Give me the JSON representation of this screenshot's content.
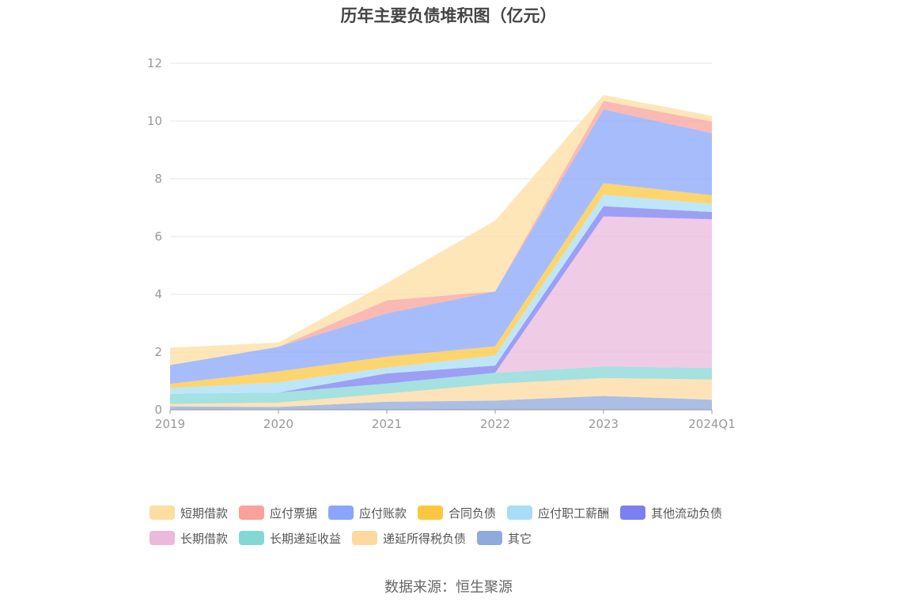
{
  "title": "历年主要负债堆积图（亿元）",
  "source": "数据来源：恒生聚源",
  "chart_data": {
    "type": "area",
    "stacked": true,
    "categories": [
      "2019",
      "2020",
      "2021",
      "2022",
      "2023",
      "2024Q1"
    ],
    "ylim": [
      0,
      12
    ],
    "yticks": [
      0,
      2,
      4,
      6,
      8,
      10,
      12
    ],
    "grid": true,
    "legend_position": "bottom",
    "series": [
      {
        "name": "其它",
        "color": "#8FAADC",
        "values": [
          0.12,
          0.1,
          0.28,
          0.32,
          0.48,
          0.35
        ]
      },
      {
        "name": "递延所得税负债",
        "color": "#FDD9A0",
        "values": [
          0.08,
          0.15,
          0.28,
          0.58,
          0.62,
          0.7
        ]
      },
      {
        "name": "长期递延收益",
        "color": "#85D7D5",
        "values": [
          0.35,
          0.35,
          0.35,
          0.38,
          0.4,
          0.4
        ]
      },
      {
        "name": "长期借款",
        "color": "#EAB9DC",
        "values": [
          0.0,
          0.0,
          0.0,
          0.0,
          5.2,
          5.15
        ]
      },
      {
        "name": "其他流动负债",
        "color": "#7B7FF0",
        "values": [
          0.0,
          0.0,
          0.35,
          0.25,
          0.35,
          0.25
        ]
      },
      {
        "name": "应付职工薪酬",
        "color": "#A8DDF8",
        "values": [
          0.2,
          0.35,
          0.2,
          0.35,
          0.4,
          0.28
        ]
      },
      {
        "name": "合同负债",
        "color": "#FCC73F",
        "values": [
          0.15,
          0.38,
          0.38,
          0.32,
          0.4,
          0.3
        ]
      },
      {
        "name": "应付账款",
        "color": "#8AA6FA",
        "values": [
          0.65,
          0.85,
          1.5,
          1.9,
          2.55,
          2.15
        ]
      },
      {
        "name": "应付票据",
        "color": "#F9A19A",
        "values": [
          0.0,
          0.0,
          0.45,
          0.0,
          0.3,
          0.4
        ]
      },
      {
        "name": "短期借款",
        "color": "#FDDDA0",
        "values": [
          0.6,
          0.15,
          0.6,
          2.45,
          0.2,
          0.2
        ]
      }
    ],
    "legend_order": [
      "短期借款",
      "应付票据",
      "应付账款",
      "合同负债",
      "应付职工薪酬",
      "其他流动负债",
      "长期借款",
      "长期递延收益",
      "递延所得税负债",
      "其它"
    ]
  }
}
